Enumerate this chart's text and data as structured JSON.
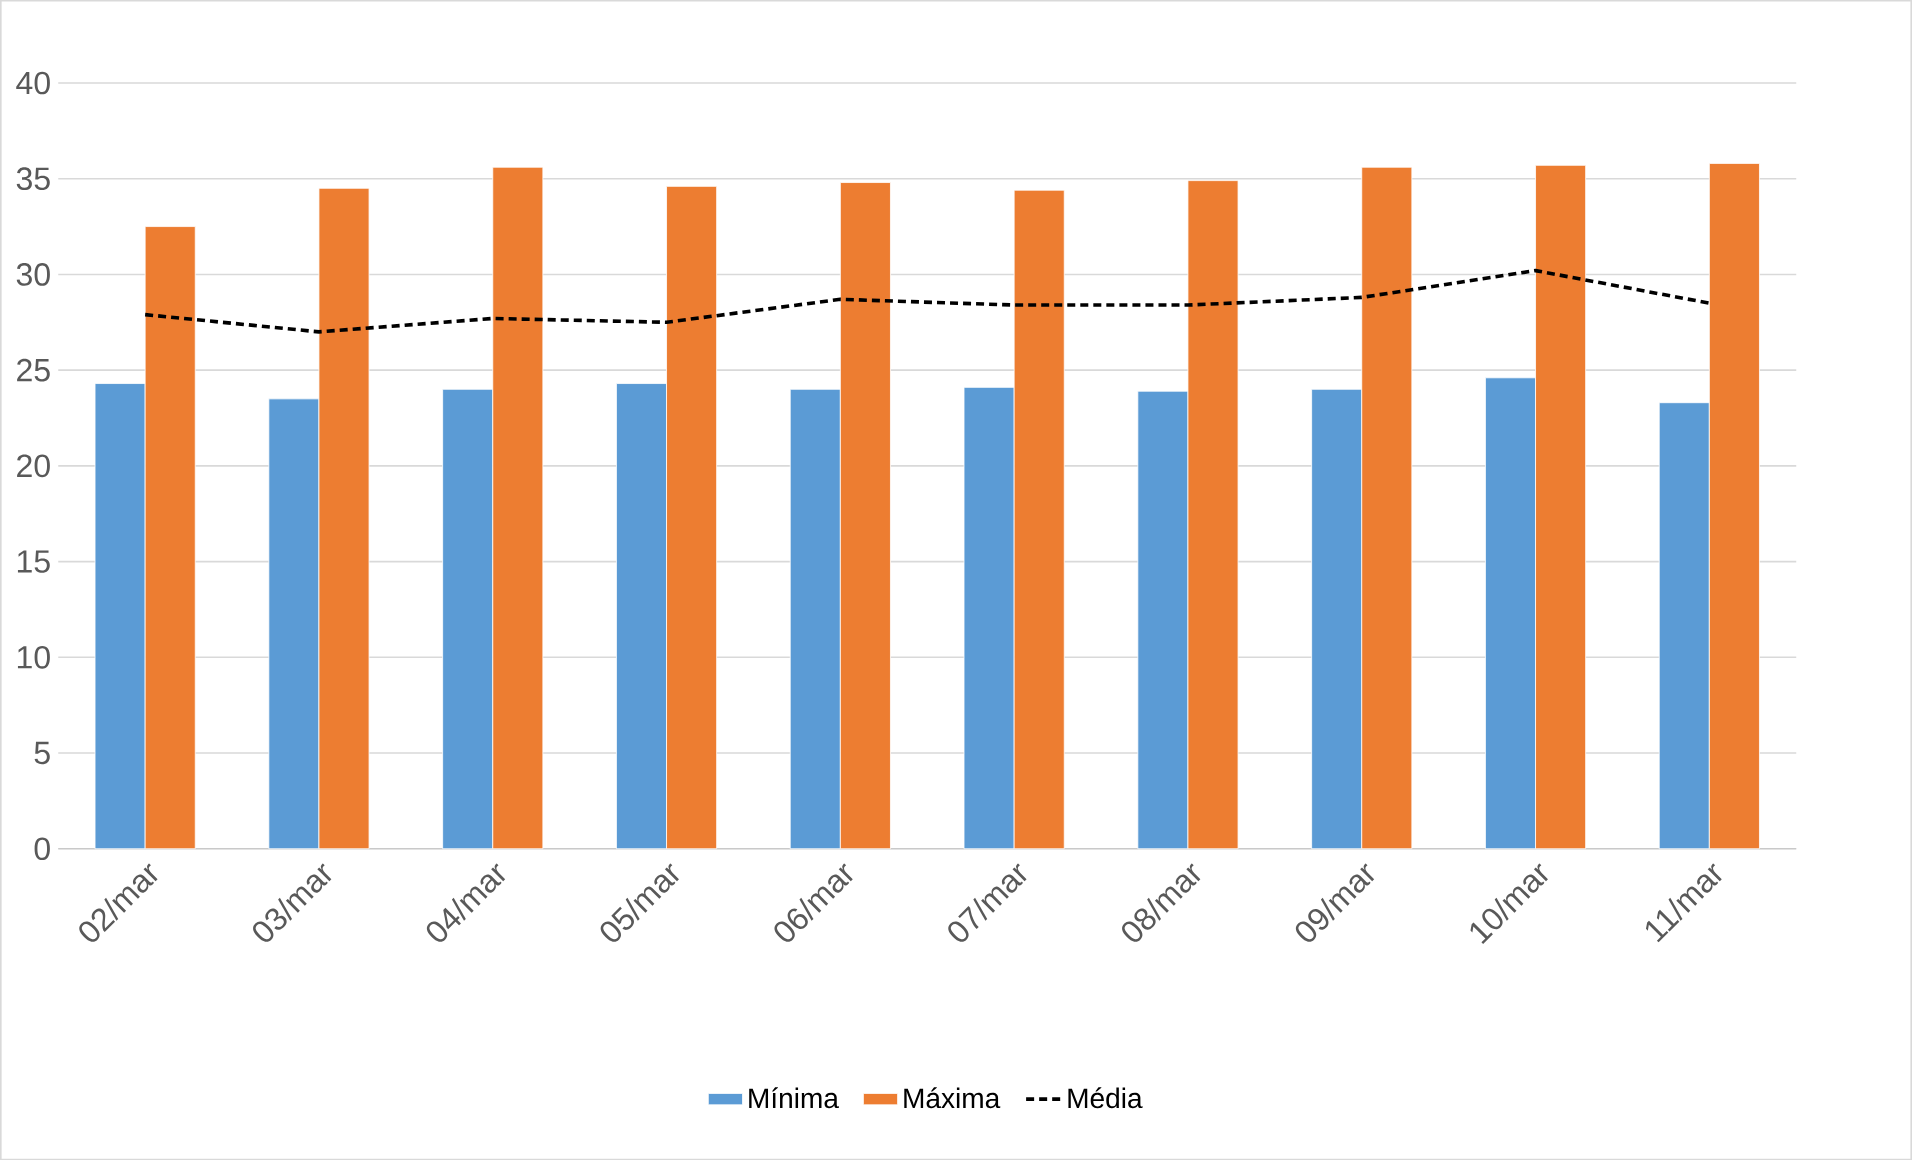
{
  "chart_data": {
    "type": "bar",
    "categories": [
      "02/mar",
      "03/mar",
      "04/mar",
      "05/mar",
      "06/mar",
      "07/mar",
      "08/mar",
      "09/mar",
      "10/mar",
      "11/mar"
    ],
    "series": [
      {
        "name": "Mínima",
        "color": "#5b9bd5",
        "values": [
          24.3,
          23.5,
          24.0,
          24.3,
          24.0,
          24.1,
          23.9,
          24.0,
          24.6,
          23.3
        ]
      },
      {
        "name": "Máxima",
        "color": "#ed7d31",
        "values": [
          32.5,
          34.5,
          35.6,
          34.6,
          34.8,
          34.4,
          34.9,
          35.6,
          35.7,
          35.8
        ]
      },
      {
        "name": "Média",
        "type": "line",
        "color": "#000000",
        "line_style": "dashed",
        "values": [
          27.9,
          27.0,
          27.7,
          27.5,
          28.7,
          28.4,
          28.4,
          28.8,
          30.2,
          28.5
        ]
      }
    ],
    "ylim": [
      0,
      40
    ],
    "yticks": [
      0,
      5,
      10,
      15,
      20,
      25,
      30,
      35,
      40
    ],
    "grid": "y",
    "legend": "bottom"
  }
}
